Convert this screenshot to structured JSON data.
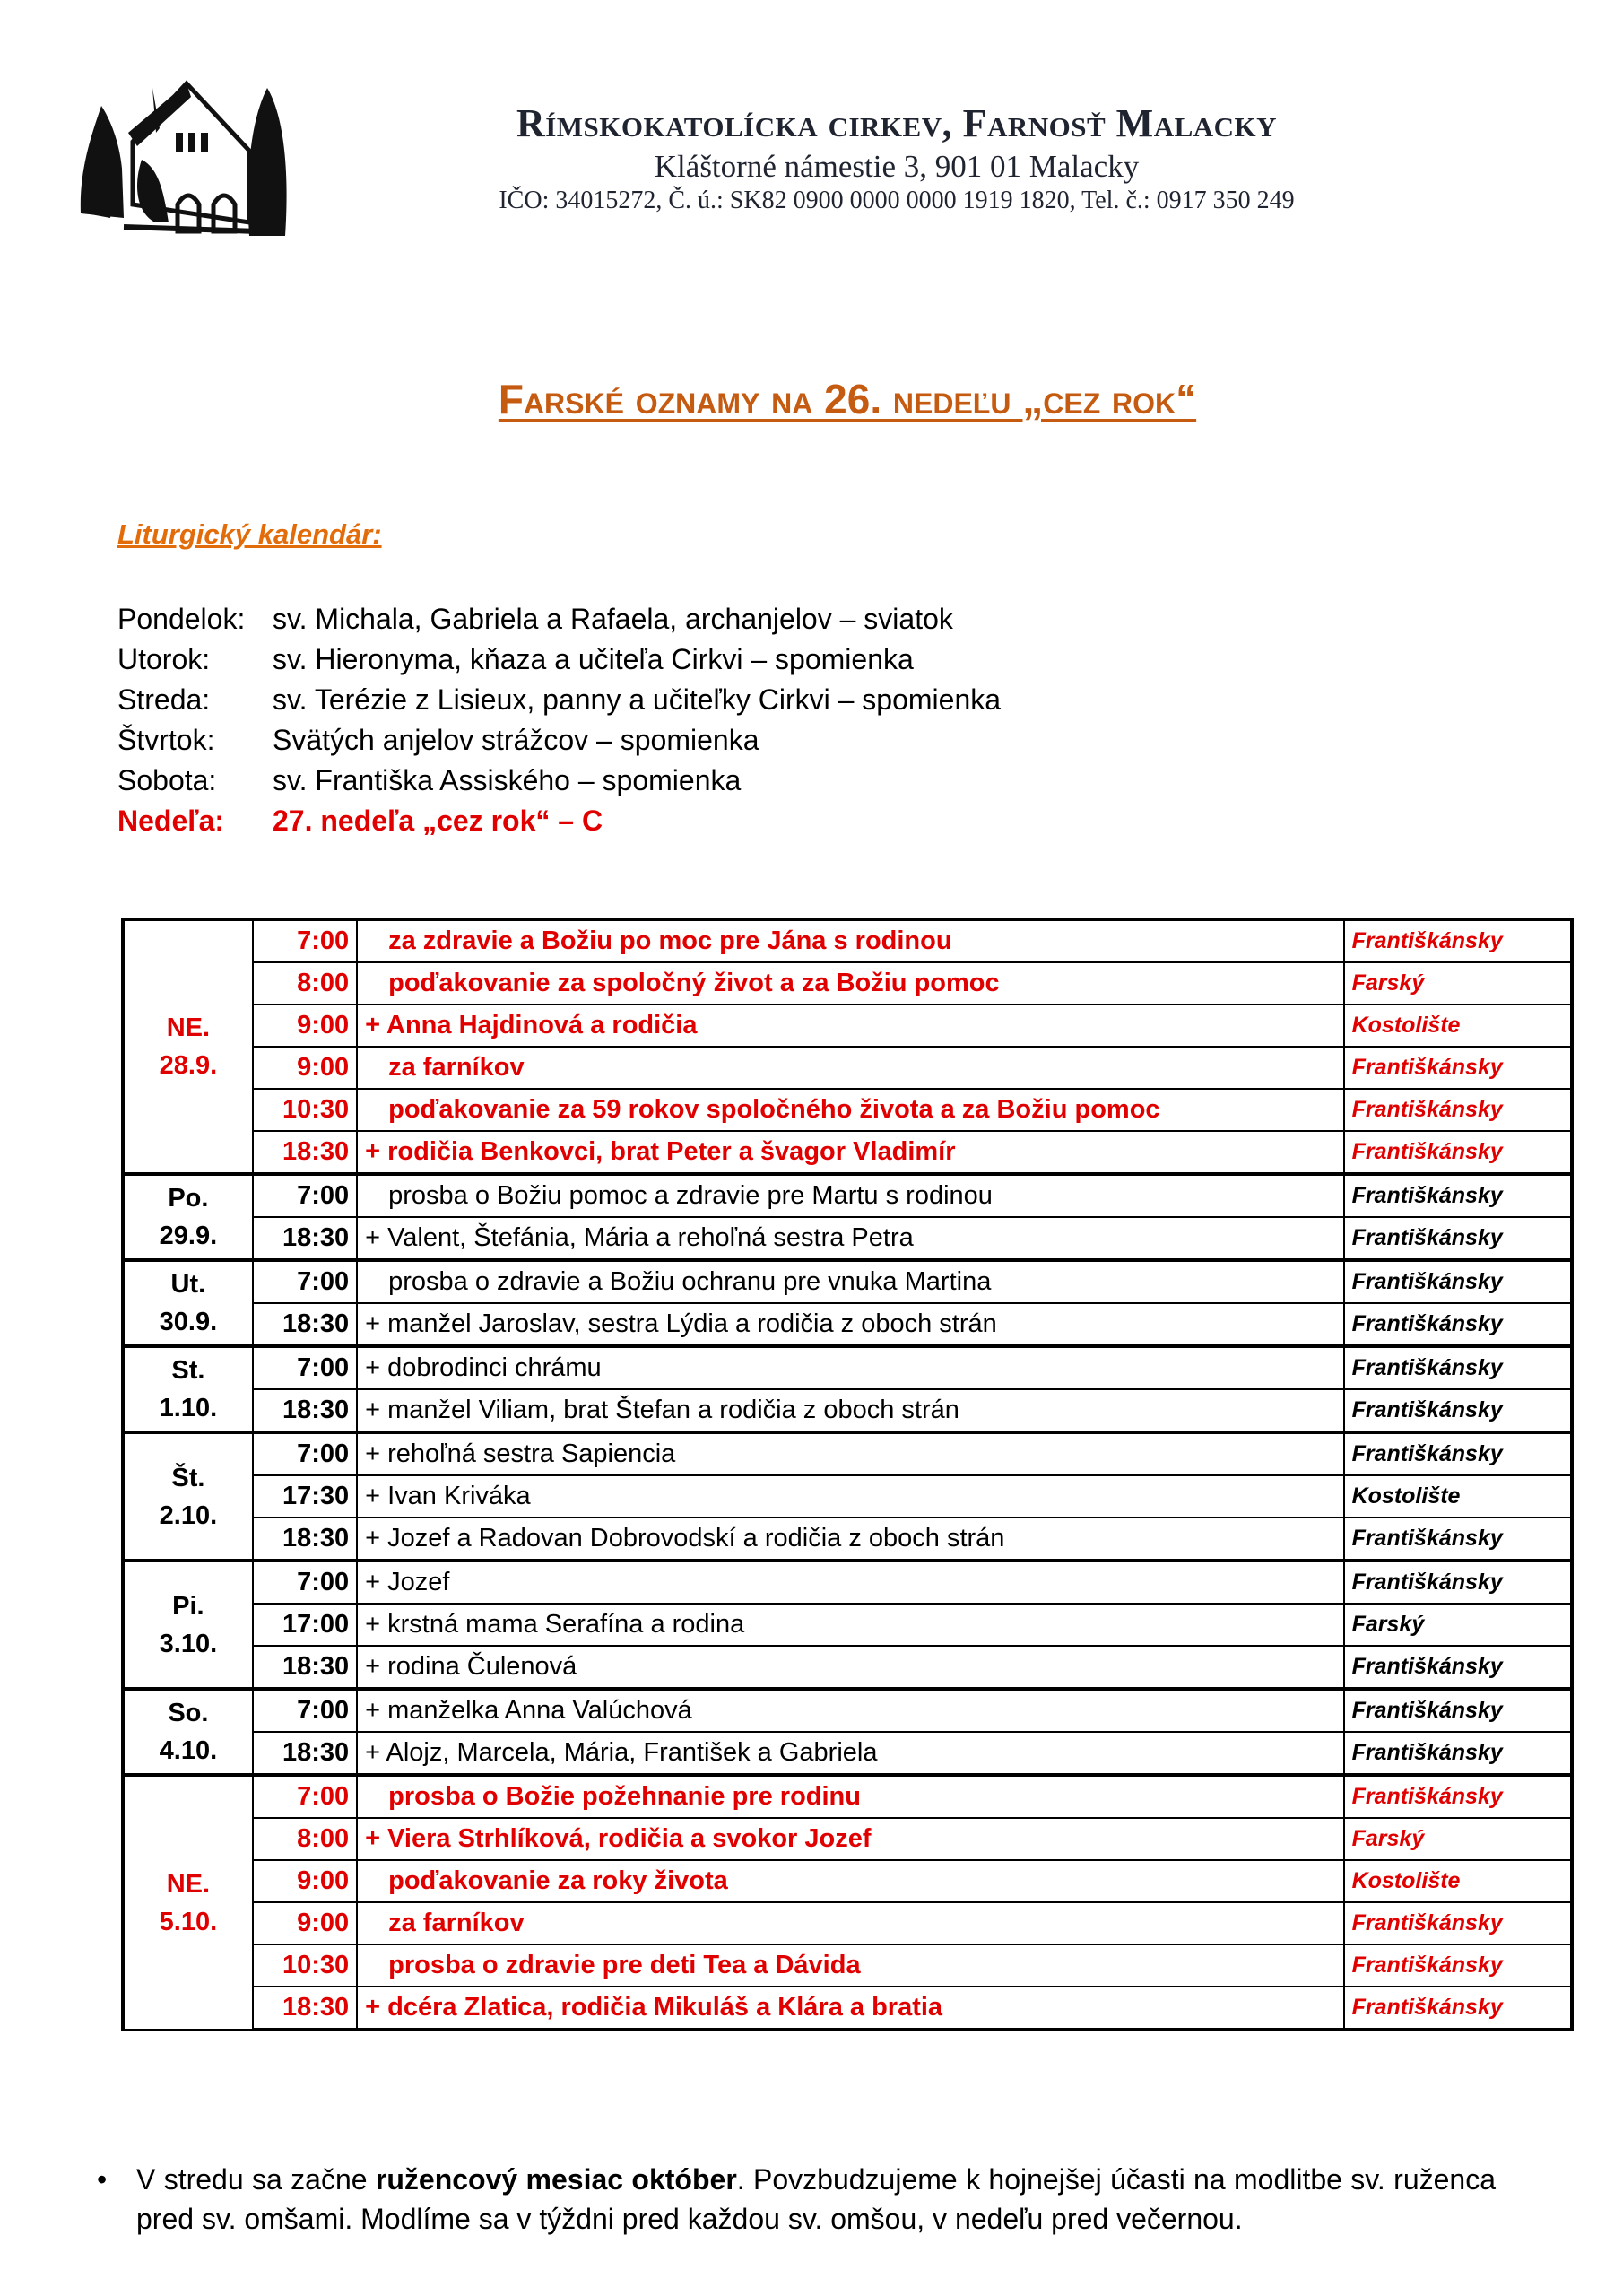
{
  "header": {
    "org": "Rímskokatolícka cirkev, Farnosť Malacky",
    "address": "Kláštorné námestie 3, 901 01 Malacky",
    "ids": "IČO: 34015272, Č. ú.: SK82 0900 0000 0000 1919 1820, Tel. č.: 0917 350 249"
  },
  "title": "Farské oznamy na 26. nedeľu „cez rok“",
  "calendar": {
    "label": "Liturgický kalendár:",
    "rows": [
      {
        "day": "Pondelok:",
        "text": "sv. Michala, Gabriela a Rafaela, archanjelov – sviatok"
      },
      {
        "day": "Utorok:",
        "text": "sv. Hieronyma, kňaza a učiteľa Cirkvi – spomienka"
      },
      {
        "day": "Streda:",
        "text": "sv. Terézie z Lisieux, panny a učiteľky Cirkvi – spomienka"
      },
      {
        "day": "Štvrtok:",
        "text": "Svätých anjelov strážcov – spomienka"
      },
      {
        "day": "Sobota:",
        "text": "sv. Františka Assiského – spomienka"
      },
      {
        "day": "Nedeľa:",
        "text": "27. nedeľa „cez rok“ – C",
        "highlight": true
      }
    ]
  },
  "colors": {
    "red": "#e00000",
    "title": "#c55a11",
    "label": "#e36c0a"
  },
  "schedule": [
    {
      "day": "NE.",
      "date": "28.9.",
      "sunday": true,
      "masses": [
        {
          "time": "7:00",
          "text": "za zdravie a Božiu po moc pre Jána s rodinou",
          "place": "Františkánsky"
        },
        {
          "time": "8:00",
          "text": "poďakovanie za spoločný život a za Božiu pomoc",
          "place": "Farský"
        },
        {
          "time": "9:00",
          "text": "+ Anna Hajdinová a rodičia",
          "place": "Kostolište"
        },
        {
          "time": "9:00",
          "text": "za farníkov",
          "place": "Františkánsky"
        },
        {
          "time": "10:30",
          "text": "poďakovanie za 59 rokov spoločného života a za Božiu pomoc",
          "place": "Františkánsky"
        },
        {
          "time": "18:30",
          "text": "+ rodičia Benkovci, brat Peter a švagor Vladimír",
          "place": "Františkánsky"
        }
      ]
    },
    {
      "day": "Po.",
      "date": "29.9.",
      "masses": [
        {
          "time": "7:00",
          "text": "prosba o Božiu pomoc a zdravie pre Martu s rodinou",
          "place": "Františkánsky"
        },
        {
          "time": "18:30",
          "text": "+ Valent, Štefánia, Mária a rehoľná sestra Petra",
          "place": "Františkánsky"
        }
      ]
    },
    {
      "day": "Ut.",
      "date": "30.9.",
      "masses": [
        {
          "time": "7:00",
          "text": "prosba o zdravie a Božiu ochranu pre vnuka Martina",
          "place": "Františkánsky"
        },
        {
          "time": "18:30",
          "text": "+ manžel Jaroslav, sestra Lýdia a rodičia z oboch strán",
          "place": "Františkánsky"
        }
      ]
    },
    {
      "day": "St.",
      "date": "1.10.",
      "masses": [
        {
          "time": "7:00",
          "text": "+ dobrodinci chrámu",
          "place": "Františkánsky"
        },
        {
          "time": "18:30",
          "text": "+ manžel Viliam, brat Štefan a rodičia z oboch strán",
          "place": "Františkánsky"
        }
      ]
    },
    {
      "day": "Št.",
      "date": "2.10.",
      "masses": [
        {
          "time": "7:00",
          "text": "+ rehoľná sestra Sapiencia",
          "place": "Františkánsky"
        },
        {
          "time": "17:30",
          "text": "+ Ivan Kriváka",
          "place": "Kostolište"
        },
        {
          "time": "18:30",
          "text": "+ Jozef a Radovan Dobrovodskí a rodičia z oboch strán",
          "place": "Františkánsky"
        }
      ]
    },
    {
      "day": "Pi.",
      "date": "3.10.",
      "masses": [
        {
          "time": "7:00",
          "text": "+ Jozef",
          "place": "Františkánsky"
        },
        {
          "time": "17:00",
          "text": "+ krstná mama Serafína a rodina",
          "place": "Farský"
        },
        {
          "time": "18:30",
          "text": "+ rodina Čulenová",
          "place": "Františkánsky"
        }
      ]
    },
    {
      "day": "So.",
      "date": "4.10.",
      "masses": [
        {
          "time": "7:00",
          "text": "+ manželka Anna Valúchová",
          "place": "Františkánsky"
        },
        {
          "time": "18:30",
          "text": "+ Alojz, Marcela, Mária, František a Gabriela",
          "place": "Františkánsky"
        }
      ]
    },
    {
      "day": "NE.",
      "date": "5.10.",
      "sunday": true,
      "masses": [
        {
          "time": "7:00",
          "text": "prosba o Božie požehnanie pre rodinu",
          "place": "Františkánsky"
        },
        {
          "time": "8:00",
          "text": "+ Viera Strhlíková, rodičia a svokor Jozef",
          "place": "Farský"
        },
        {
          "time": "9:00",
          "text": "poďakovanie za roky života",
          "place": "Kostolište"
        },
        {
          "time": "9:00",
          "text": "za farníkov",
          "place": "Františkánsky"
        },
        {
          "time": "10:30",
          "text": "prosba o zdravie pre deti Tea a Dávida",
          "place": "Františkánsky"
        },
        {
          "time": "18:30",
          "text": "+ dcéra Zlatica, rodičia Mikuláš a Klára a bratia",
          "place": "Františkánsky"
        }
      ]
    }
  ],
  "notes": [
    {
      "before": "V stredu sa začne ",
      "bold": "ružencový mesiac október",
      "after": ". Povzbudzujeme k hojnejšej účasti na modlitbe sv. ruženca pred sv. omšami. Modlíme sa v týždni pred každou sv. omšou, v nedeľu pred večernou."
    }
  ]
}
